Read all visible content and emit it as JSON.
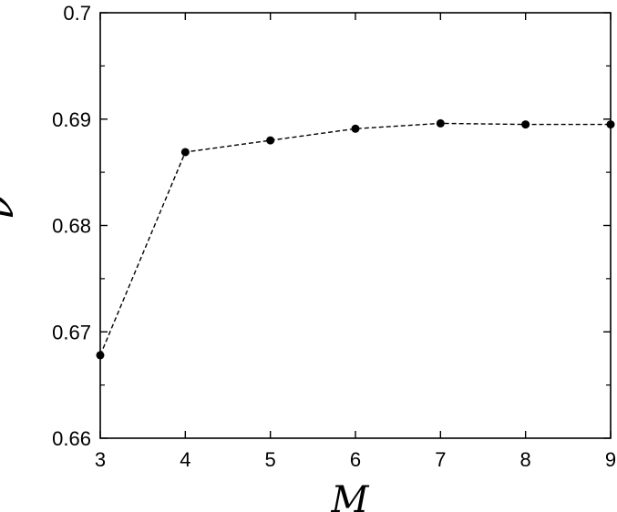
{
  "chart_data": {
    "type": "line",
    "title": "",
    "xlabel": "M",
    "ylabel": "ν",
    "xlim": [
      3,
      9
    ],
    "ylim": [
      0.66,
      0.7
    ],
    "xticks": [
      3,
      4,
      5,
      6,
      7,
      8,
      9
    ],
    "xtick_labels": [
      "3",
      "4",
      "5",
      "6",
      "7",
      "8",
      "9"
    ],
    "yticks": [
      0.66,
      0.67,
      0.68,
      0.69,
      0.7
    ],
    "ytick_labels": [
      "0.66",
      "0.67",
      "0.68",
      "0.69",
      "0.7"
    ],
    "grid": false,
    "series": [
      {
        "line_style": "dashed",
        "marker": "filled-circle",
        "color": "#000000",
        "x": [
          3,
          4,
          5,
          6,
          7,
          8,
          9
        ],
        "y": [
          0.6678,
          0.6869,
          0.688,
          0.6891,
          0.6896,
          0.6895,
          0.6895
        ]
      }
    ]
  }
}
